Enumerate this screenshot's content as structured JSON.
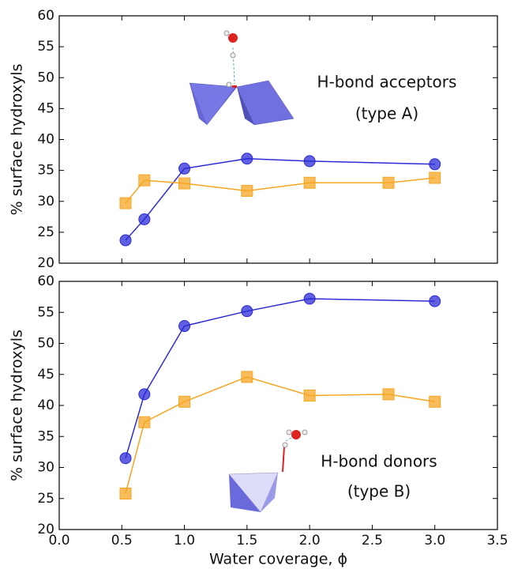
{
  "chart_data": [
    {
      "type": "line",
      "ylabel": "% surface hydroxyls",
      "annotation": [
        "H-bond acceptors",
        "(type A)"
      ],
      "xlim": [
        0,
        3.5
      ],
      "ylim": [
        20,
        60
      ],
      "yticks": [
        20,
        25,
        30,
        35,
        40,
        45,
        50,
        55,
        60
      ],
      "series": [
        {
          "color": "#2b2bd6",
          "marker": "circle",
          "x": [
            0.53,
            0.68,
            1.0,
            1.5,
            2.0,
            3.0
          ],
          "values": [
            23.7,
            27.1,
            35.3,
            36.9,
            36.5,
            36.0
          ]
        },
        {
          "color": "#f5a623",
          "marker": "square",
          "x": [
            0.53,
            0.68,
            1.0,
            1.5,
            2.0,
            2.63,
            3.0
          ],
          "values": [
            29.7,
            33.4,
            32.9,
            31.7,
            33.0,
            33.0,
            33.8
          ]
        }
      ]
    },
    {
      "type": "line",
      "ylabel": "% surface hydroxyls",
      "xlabel": "Water coverage, ϕ",
      "annotation": [
        "H-bond donors",
        "(type B)"
      ],
      "xlim": [
        0,
        3.5
      ],
      "ylim": [
        20,
        60
      ],
      "yticks": [
        20,
        25,
        30,
        35,
        40,
        45,
        50,
        55,
        60
      ],
      "xticks": [
        {
          "value": 0,
          "label": "0.0"
        },
        {
          "value": 0.5,
          "label": "0.5"
        },
        {
          "value": 1,
          "label": "1.0"
        },
        {
          "value": 1.5,
          "label": "1.5"
        },
        {
          "value": 2,
          "label": "2.0"
        },
        {
          "value": 2.5,
          "label": "2.5"
        },
        {
          "value": 3,
          "label": "3.0"
        },
        {
          "value": 3.5,
          "label": "3.5"
        }
      ],
      "series": [
        {
          "color": "#2b2bd6",
          "marker": "circle",
          "x": [
            0.53,
            0.68,
            1.0,
            1.5,
            2.0,
            3.0
          ],
          "values": [
            31.5,
            41.8,
            52.8,
            55.2,
            57.2,
            56.8
          ]
        },
        {
          "color": "#f5a623",
          "marker": "square",
          "x": [
            0.53,
            0.68,
            1.0,
            1.5,
            2.0,
            2.63,
            3.0
          ],
          "values": [
            25.8,
            37.3,
            40.6,
            44.6,
            41.6,
            41.8,
            40.6
          ]
        }
      ]
    }
  ]
}
